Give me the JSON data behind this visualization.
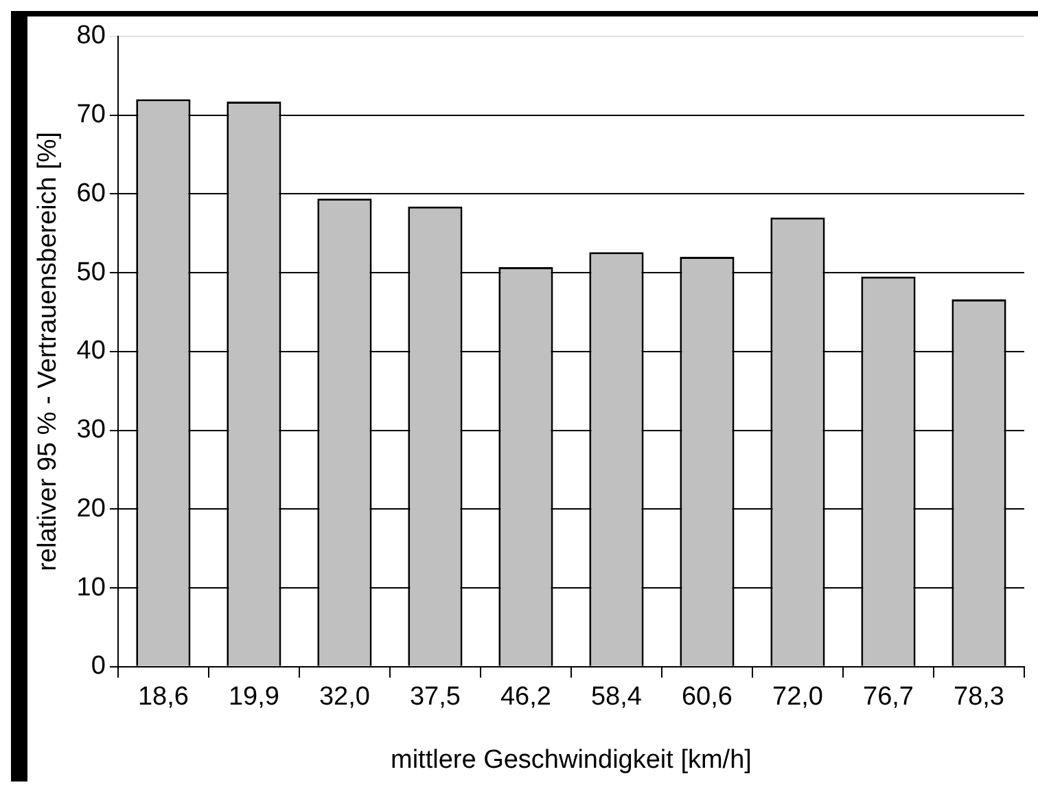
{
  "chart_data": {
    "type": "bar",
    "xlabel": "mittlere Geschwindigkeit [km/h]",
    "ylabel": "relativer 95 % - Vertrauensbereich [%]",
    "categories": [
      "18,6",
      "19,9",
      "32,0",
      "37,5",
      "46,2",
      "58,4",
      "60,6",
      "72,0",
      "76,7",
      "78,3"
    ],
    "values": [
      72,
      71.7,
      59.4,
      58.4,
      50.7,
      52.6,
      52,
      57,
      49.5,
      46.6
    ],
    "color": "#c0c0c0",
    "ylim": [
      0,
      80
    ],
    "yticks": [
      0,
      10,
      20,
      30,
      40,
      50,
      60,
      70,
      80
    ],
    "grid": "y",
    "legend": false
  }
}
